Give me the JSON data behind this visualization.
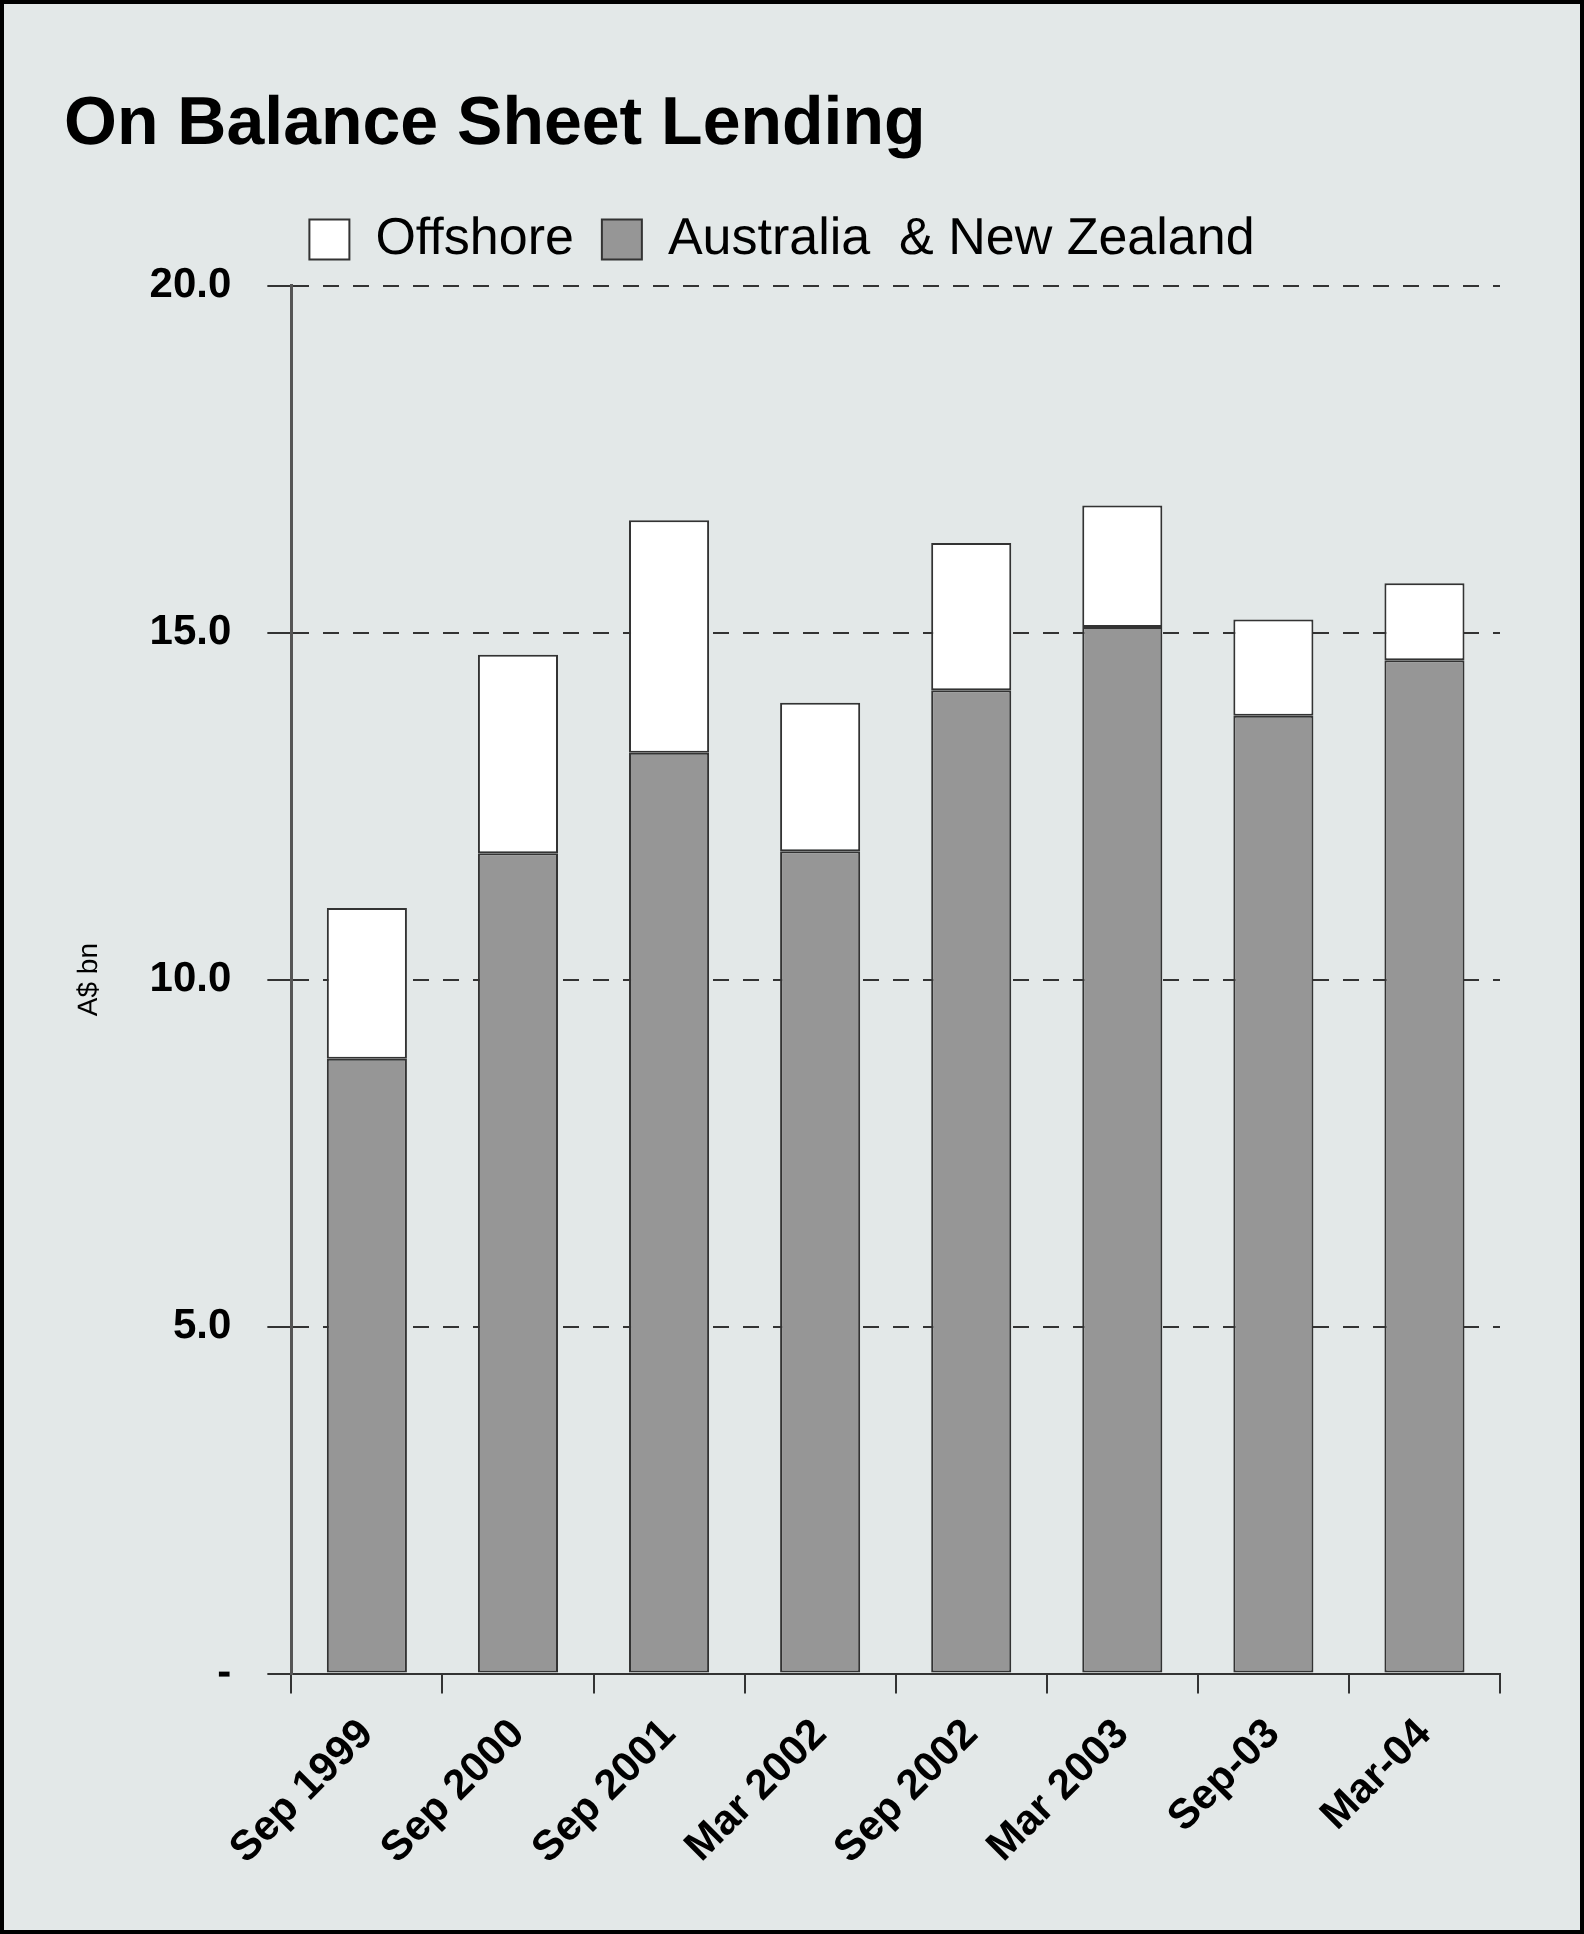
{
  "chart_data": {
    "type": "bar",
    "title": "On Balance Sheet Lending",
    "ylabel": "A$ bn",
    "categories": [
      "Sep 1999",
      "Sep 2000",
      "Sep 2001",
      "Mar 2002",
      "Sep 2002",
      "Mar 2003",
      "Sep-03",
      "Mar-04"
    ],
    "stacked": true,
    "series": [
      {
        "name": "Australia  & New Zealand",
        "color": "#969696",
        "values": [
          8.86,
          11.82,
          13.27,
          11.85,
          14.17,
          15.08,
          13.8,
          14.6
        ]
      },
      {
        "name": "Offshore",
        "color": "#ffffff",
        "values": [
          2.17,
          2.86,
          3.35,
          2.14,
          2.12,
          1.75,
          1.39,
          1.11
        ]
      }
    ],
    "ylim": [
      0,
      20
    ],
    "yticks": [
      {
        "value": 0,
        "label": "-"
      },
      {
        "value": 5,
        "label": "5.0"
      },
      {
        "value": 10,
        "label": "10.0"
      },
      {
        "value": 15,
        "label": "15.0"
      },
      {
        "value": 20,
        "label": "20.0"
      }
    ],
    "grid": "y",
    "legend": "top"
  }
}
